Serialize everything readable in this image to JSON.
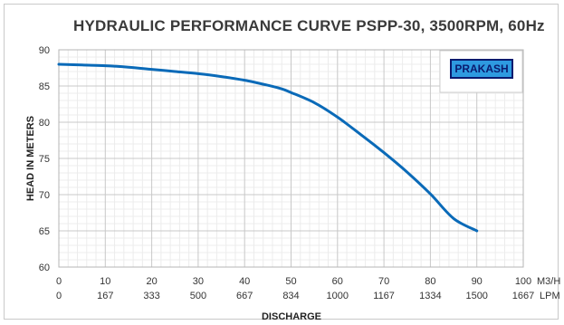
{
  "chart_data": {
    "type": "line",
    "title": "HYDRAULIC PERFORMANCE CURVE PSPP-30, 3500RPM, 60Hz",
    "xlabel": "DISCHARGE",
    "ylabel": "HEAD IN METERS",
    "xlim": [
      0,
      100
    ],
    "ylim": [
      60,
      90
    ],
    "x_ticks": [
      "0",
      "10",
      "20",
      "30",
      "40",
      "50",
      "60",
      "70",
      "80",
      "90",
      "100"
    ],
    "x_unit": "M3/H",
    "x2_ticks": [
      "0",
      "167",
      "333",
      "500",
      "667",
      "834",
      "1000",
      "1167",
      "1334",
      "1500",
      "1667"
    ],
    "x2_unit": "LPM",
    "y_ticks": [
      "60",
      "65",
      "70",
      "75",
      "80",
      "85",
      "90"
    ],
    "grid": true,
    "series": [
      {
        "color": "#0a6ab8",
        "x": [
          0,
          5,
          10,
          15,
          20,
          25,
          30,
          35,
          40,
          45,
          48,
          50,
          55,
          60,
          65,
          70,
          75,
          80,
          85,
          90
        ],
        "y": [
          88.0,
          87.9,
          87.8,
          87.6,
          87.3,
          87.0,
          86.7,
          86.3,
          85.8,
          85.1,
          84.6,
          84.1,
          82.7,
          80.7,
          78.3,
          75.8,
          73.1,
          70.1,
          66.7,
          65.0
        ]
      }
    ],
    "logo": "PRAKASH"
  }
}
